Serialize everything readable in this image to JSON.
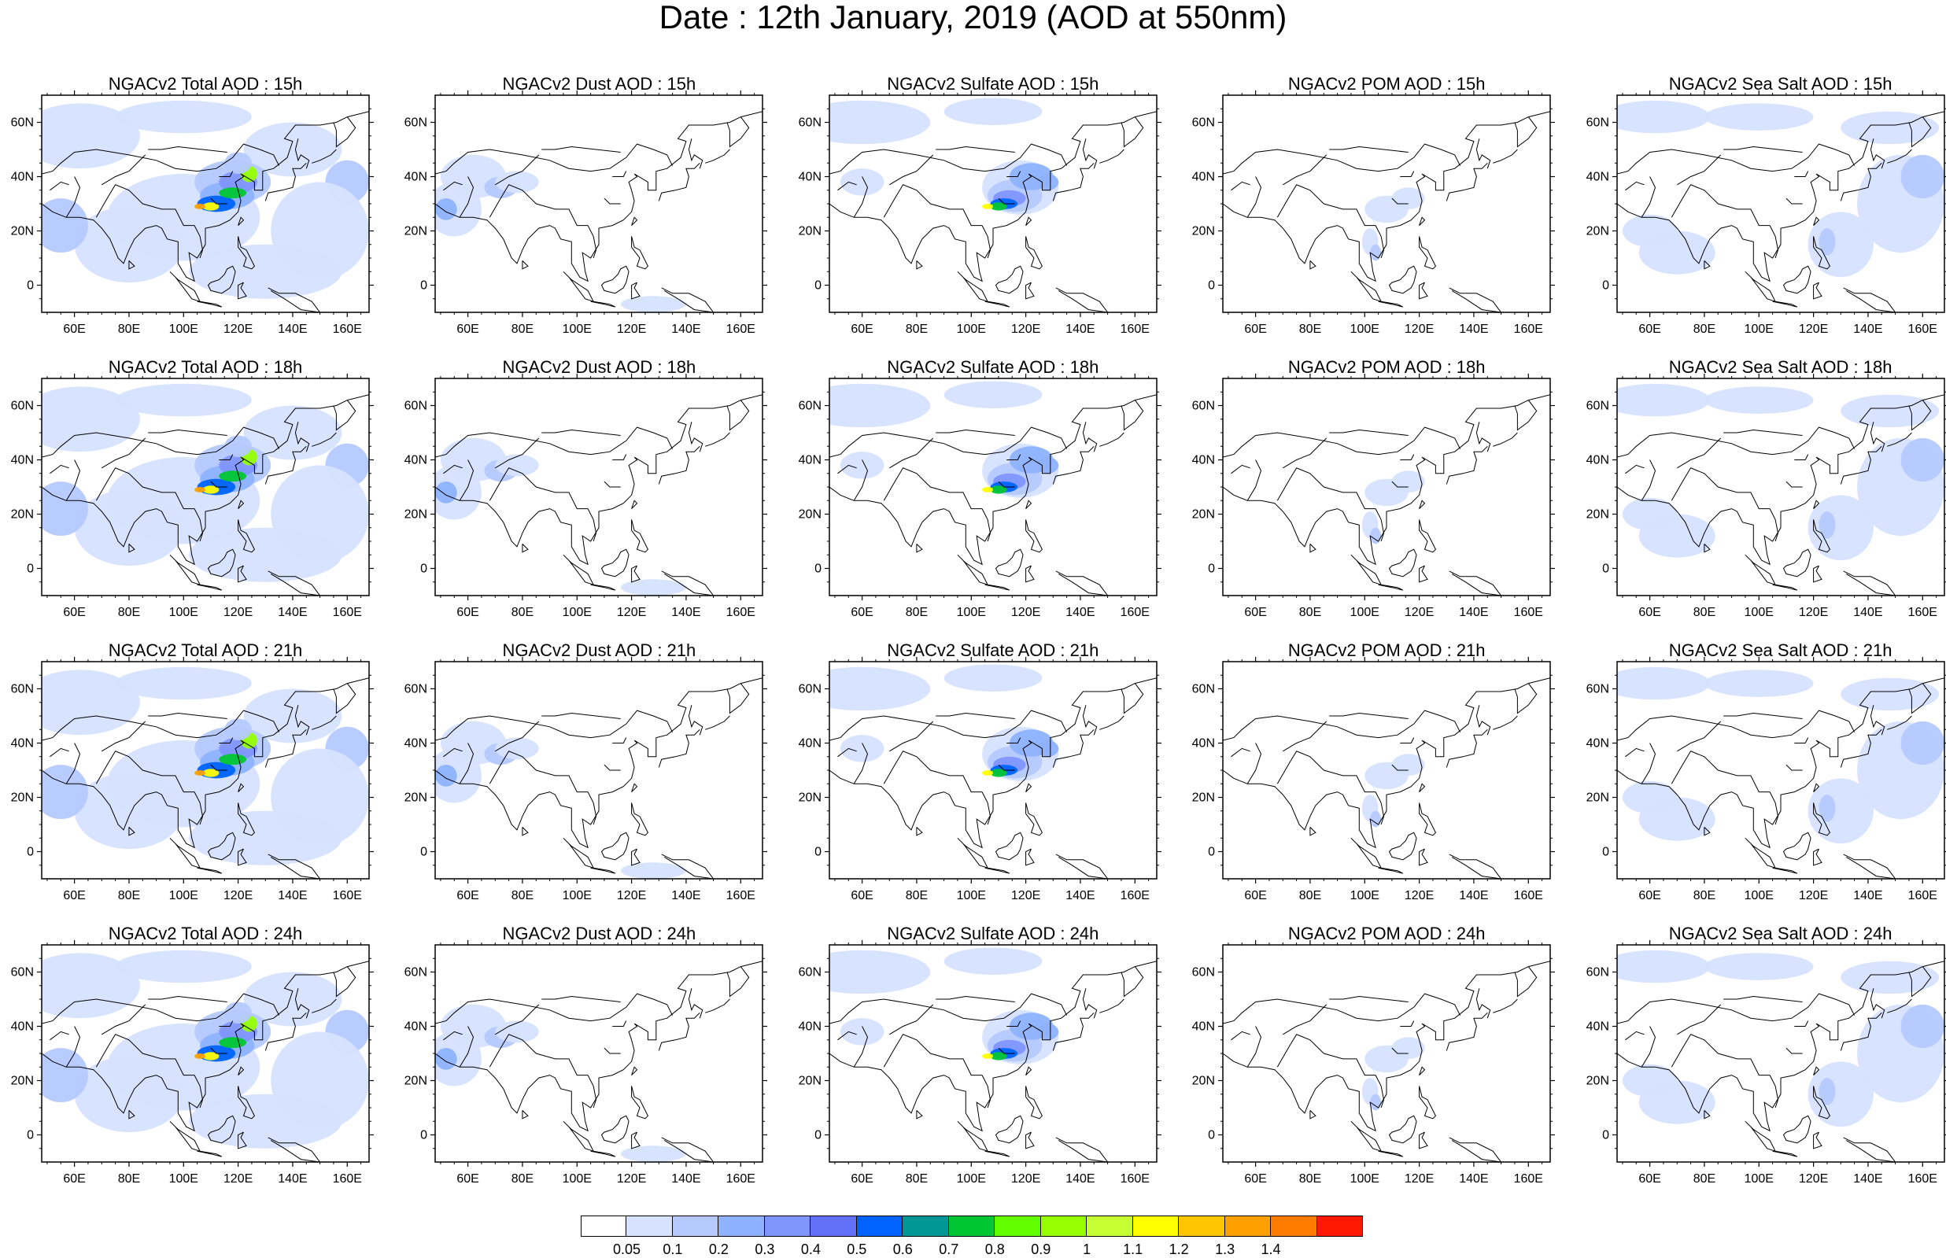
{
  "title": "Date : 12th January, 2019 (AOD at 550nm)",
  "species_rows": [
    "15h",
    "18h",
    "21h",
    "24h"
  ],
  "panels": [
    {
      "title": "NGACv2 Total AOD : 15h",
      "species": "total"
    },
    {
      "title": "NGACv2 Dust AOD : 15h",
      "species": "dust"
    },
    {
      "title": "NGACv2 Sulfate AOD : 15h",
      "species": "sulfate"
    },
    {
      "title": "NGACv2 POM AOD : 15h",
      "species": "pom"
    },
    {
      "title": "NGACv2 Sea Salt AOD : 15h",
      "species": "seasalt"
    },
    {
      "title": "NGACv2 Total AOD : 18h",
      "species": "total"
    },
    {
      "title": "NGACv2 Dust AOD : 18h",
      "species": "dust"
    },
    {
      "title": "NGACv2 Sulfate AOD : 18h",
      "species": "sulfate"
    },
    {
      "title": "NGACv2 POM AOD : 18h",
      "species": "pom"
    },
    {
      "title": "NGACv2 Sea Salt AOD : 18h",
      "species": "seasalt"
    },
    {
      "title": "NGACv2 Total AOD : 21h",
      "species": "total"
    },
    {
      "title": "NGACv2 Dust AOD : 21h",
      "species": "dust"
    },
    {
      "title": "NGACv2 Sulfate AOD : 21h",
      "species": "sulfate"
    },
    {
      "title": "NGACv2 POM AOD : 21h",
      "species": "pom"
    },
    {
      "title": "NGACv2 Sea Salt AOD : 21h",
      "species": "seasalt"
    },
    {
      "title": "NGACv2 Total AOD : 24h",
      "species": "total"
    },
    {
      "title": "NGACv2 Dust AOD : 24h",
      "species": "dust"
    },
    {
      "title": "NGACv2 Sulfate AOD : 24h",
      "species": "sulfate"
    },
    {
      "title": "NGACv2 POM AOD : 24h",
      "species": "pom"
    },
    {
      "title": "NGACv2 Sea Salt  AOD : 24h",
      "species": "seasalt"
    }
  ],
  "axes": {
    "lon_range": [
      48,
      168
    ],
    "lat_range": [
      -10,
      70
    ],
    "lon_ticks": [
      "60E",
      "80E",
      "100E",
      "120E",
      "140E",
      "160E"
    ],
    "lon_tick_values": [
      60,
      80,
      100,
      120,
      140,
      160
    ],
    "lat_ticks": [
      "60N",
      "40N",
      "20N",
      "0"
    ],
    "lat_tick_values": [
      60,
      40,
      20,
      0
    ]
  },
  "colorbar": {
    "labels": [
      "0.05",
      "0.1",
      "0.2",
      "0.3",
      "0.4",
      "0.5",
      "0.6",
      "0.7",
      "0.8",
      "0.9",
      "1",
      "1.1",
      "1.2",
      "1.3",
      "1.4"
    ],
    "colors": [
      "#ffffff",
      "#d6e2ff",
      "#b5c9ff",
      "#8eb2ff",
      "#7f96ff",
      "#6370f8",
      "#0063ff",
      "#009696",
      "#00c633",
      "#63ff00",
      "#96ff00",
      "#c6ff33",
      "#ffff00",
      "#ffc600",
      "#ffa000",
      "#ff7c00",
      "#ff1900"
    ]
  },
  "colors": {
    "light_blue": "#d6e2ff",
    "mid_blue": "#b5c9ff",
    "blue": "#8eb2ff",
    "coastline": "#000000"
  }
}
